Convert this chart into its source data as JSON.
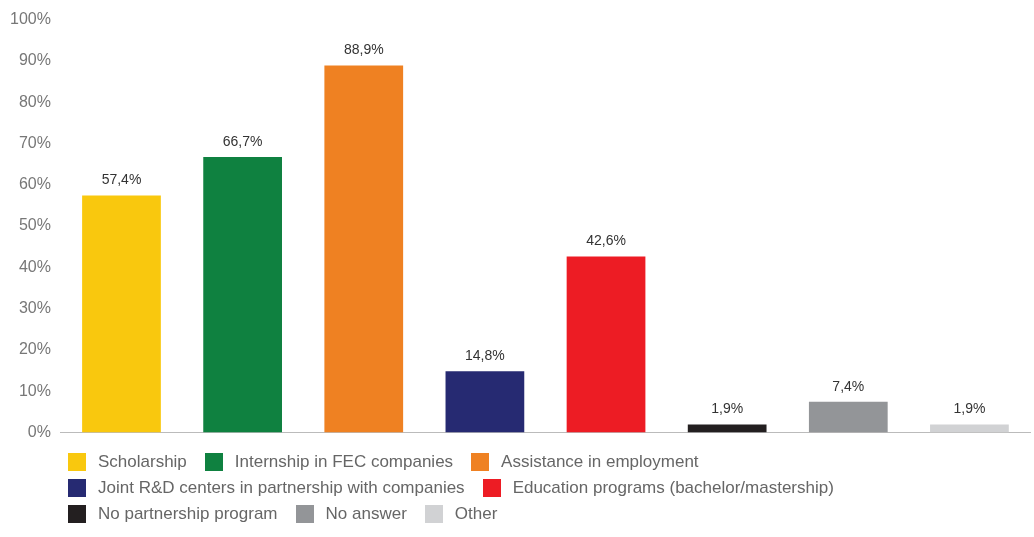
{
  "chart_data": {
    "type": "bar",
    "categories": [
      null,
      null,
      null,
      null,
      null,
      null,
      null,
      null
    ],
    "ylim": [
      0,
      100
    ],
    "yticks": [
      {
        "value": 0,
        "label": "0%"
      },
      {
        "value": 10,
        "label": "10%"
      },
      {
        "value": 20,
        "label": "20%"
      },
      {
        "value": 30,
        "label": "30%"
      },
      {
        "value": 40,
        "label": "40%"
      },
      {
        "value": 50,
        "label": "50%"
      },
      {
        "value": 60,
        "label": "60%"
      },
      {
        "value": 70,
        "label": "70%"
      },
      {
        "value": 80,
        "label": "80%"
      },
      {
        "value": 90,
        "label": "90%"
      },
      {
        "value": 100,
        "label": "100%"
      }
    ],
    "grid": false,
    "legend": "bottom",
    "series": [
      {
        "name": "Scholarship",
        "color": "#f9c80e",
        "values": [
          57.4,
          null,
          null,
          null,
          null,
          null,
          null,
          null
        ],
        "value_labels": [
          "57,4%",
          null,
          null,
          null,
          null,
          null,
          null,
          null
        ]
      },
      {
        "name": "Internship in FEC companies",
        "color": "#0f8140",
        "values": [
          null,
          66.7,
          null,
          null,
          null,
          null,
          null,
          null
        ],
        "value_labels": [
          null,
          "66,7%",
          null,
          null,
          null,
          null,
          null,
          null
        ]
      },
      {
        "name": "Assistance in employment",
        "color": "#ef8122",
        "values": [
          null,
          null,
          88.9,
          null,
          null,
          null,
          null,
          null
        ],
        "value_labels": [
          null,
          null,
          "88,9%",
          null,
          null,
          null,
          null,
          null
        ]
      },
      {
        "name": "Joint R&D centers in partnership with companies",
        "color": "#262a72",
        "values": [
          null,
          null,
          null,
          14.8,
          null,
          null,
          null,
          null
        ],
        "value_labels": [
          null,
          null,
          null,
          "14,8%",
          null,
          null,
          null,
          null
        ]
      },
      {
        "name": "Education programs (bachelor/mastership)",
        "color": "#ed1c24",
        "values": [
          null,
          null,
          null,
          null,
          42.6,
          null,
          null,
          null
        ],
        "value_labels": [
          null,
          null,
          null,
          null,
          "42,6%",
          null,
          null,
          null
        ]
      },
      {
        "name": "No partnership program",
        "color": "#231f20",
        "values": [
          null,
          null,
          null,
          null,
          null,
          1.9,
          null,
          null
        ],
        "value_labels": [
          null,
          null,
          null,
          null,
          null,
          "1,9%",
          null,
          null
        ]
      },
      {
        "name": "No answer",
        "color": "#939598",
        "values": [
          null,
          null,
          null,
          null,
          null,
          null,
          7.4,
          null
        ],
        "value_labels": [
          null,
          null,
          null,
          null,
          null,
          null,
          "7,4%",
          null
        ]
      },
      {
        "name": "Other",
        "color": "#d1d2d4",
        "values": [
          null,
          null,
          null,
          null,
          null,
          null,
          null,
          1.9
        ],
        "value_labels": [
          null,
          null,
          null,
          null,
          null,
          null,
          null,
          "1,9%"
        ]
      }
    ]
  }
}
